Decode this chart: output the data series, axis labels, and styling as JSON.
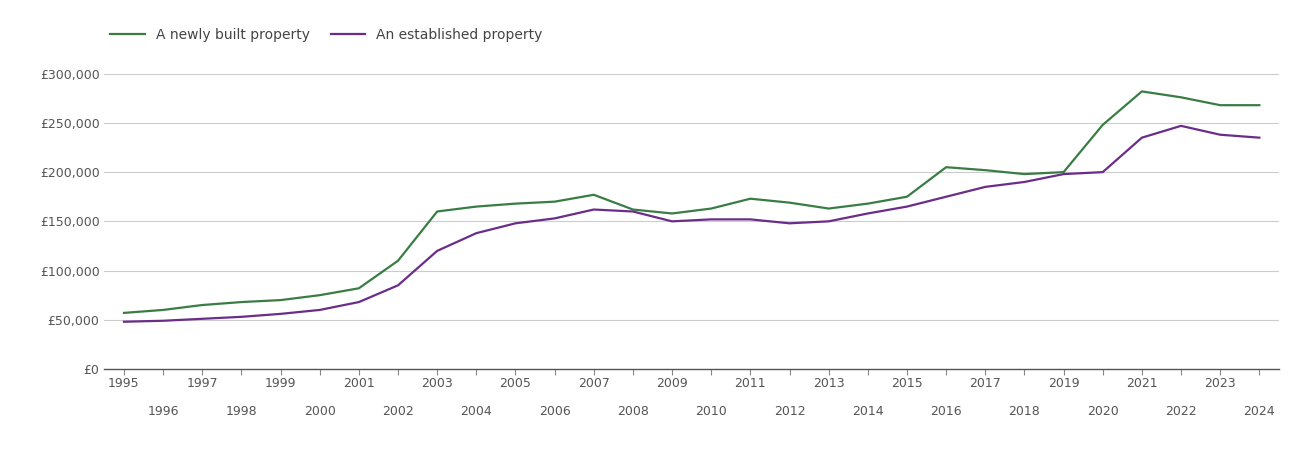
{
  "years": [
    1995,
    1996,
    1997,
    1998,
    1999,
    2000,
    2001,
    2002,
    2003,
    2004,
    2005,
    2006,
    2007,
    2008,
    2009,
    2010,
    2011,
    2012,
    2013,
    2014,
    2015,
    2016,
    2017,
    2018,
    2019,
    2020,
    2021,
    2022,
    2023,
    2024
  ],
  "new_build": [
    57000,
    60000,
    65000,
    68000,
    70000,
    75000,
    82000,
    110000,
    160000,
    165000,
    168000,
    170000,
    177000,
    162000,
    158000,
    163000,
    173000,
    169000,
    163000,
    168000,
    175000,
    205000,
    202000,
    198000,
    200000,
    248000,
    282000,
    276000,
    268000,
    268000
  ],
  "established": [
    48000,
    49000,
    51000,
    53000,
    56000,
    60000,
    68000,
    85000,
    120000,
    138000,
    148000,
    153000,
    162000,
    160000,
    150000,
    152000,
    152000,
    148000,
    150000,
    158000,
    165000,
    175000,
    185000,
    190000,
    198000,
    200000,
    235000,
    247000,
    238000,
    235000
  ],
  "new_build_color": "#3a7d44",
  "established_color": "#6a2d8a",
  "legend_labels": [
    "A newly built property",
    "An established property"
  ],
  "ylim": [
    0,
    320000
  ],
  "yticks": [
    0,
    50000,
    100000,
    150000,
    200000,
    250000,
    300000
  ],
  "ytick_labels": [
    "£0",
    "£50,000",
    "£100,000",
    "£150,000",
    "£200,000",
    "£250,000",
    "£300,000"
  ],
  "background_color": "#ffffff",
  "line_width": 1.6,
  "grid_color": "#cccccc",
  "odd_years": [
    1995,
    1997,
    1999,
    2001,
    2003,
    2005,
    2007,
    2009,
    2011,
    2013,
    2015,
    2017,
    2019,
    2021,
    2023
  ],
  "even_years": [
    1996,
    1998,
    2000,
    2002,
    2004,
    2006,
    2008,
    2010,
    2012,
    2014,
    2016,
    2018,
    2020,
    2022,
    2024
  ]
}
